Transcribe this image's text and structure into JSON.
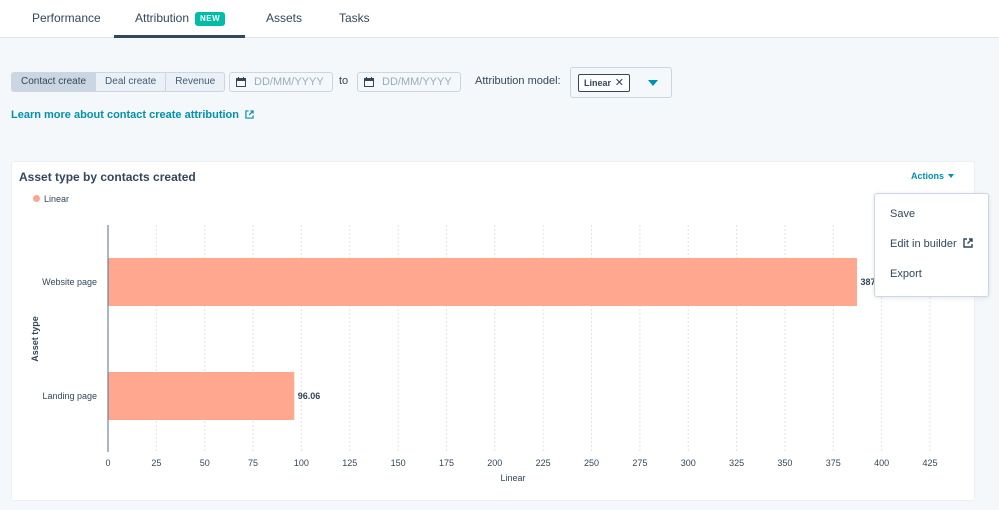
{
  "tabs": [
    {
      "label": "Performance"
    },
    {
      "label": "Attribution",
      "badge": "NEW"
    },
    {
      "label": "Assets"
    },
    {
      "label": "Tasks"
    }
  ],
  "filters": {
    "segments": [
      "Contact create",
      "Deal create",
      "Revenue"
    ],
    "date_from_placeholder": "DD/MM/YYYY",
    "to_label": "to",
    "date_to_placeholder": "DD/MM/YYYY",
    "attribution_label": "Attribution model:",
    "attribution_value": "Linear"
  },
  "learn_link": "Learn more about contact create attribution",
  "card": {
    "title": "Asset type by contacts created",
    "actions_label": "Actions",
    "menu": [
      "Save",
      "Edit in builder",
      "Export"
    ]
  },
  "colors": {
    "bar": "#ffa88f",
    "accent": "#0091ae",
    "badge": "#00bda5"
  },
  "chart_data": {
    "type": "bar",
    "orientation": "horizontal",
    "categories": [
      "Website page",
      "Landing page"
    ],
    "series": [
      {
        "name": "Linear",
        "values": [
          387,
          96.06
        ]
      }
    ],
    "data_labels": [
      "387",
      "96.06"
    ],
    "xlabel": "Linear",
    "ylabel": "Asset type",
    "xlim": [
      0,
      425
    ],
    "xticks": [
      0,
      25,
      50,
      75,
      100,
      125,
      150,
      175,
      200,
      225,
      250,
      275,
      300,
      325,
      350,
      375,
      400,
      425
    ],
    "grid": true,
    "legend": "top-left"
  }
}
